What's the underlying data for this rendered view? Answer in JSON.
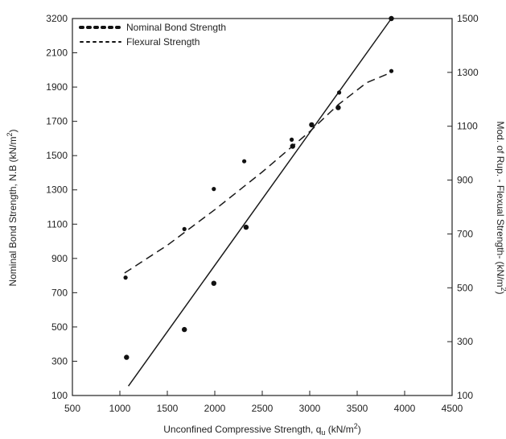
{
  "chart_data": {
    "type": "scatter",
    "xlabel": "Unconfined Compressive Strength, q",
    "xlabel_subscript": "u",
    "xlabel_unit_prefix": " (kN/m",
    "xlabel_unit_sup": "2",
    "xlabel_unit_suffix": ")",
    "ylabel_left": "Nominal Bond Strength, N.B (kN/m",
    "ylabel_left_sup": "2",
    "ylabel_left_suffix": ")",
    "ylabel_right": "Mod. of Rup. - Flexual Strength- (kN/m",
    "ylabel_right_sup": "2",
    "ylabel_right_suffix": ")",
    "xlim": [
      500,
      4500
    ],
    "ylim_left": [
      100,
      3200
    ],
    "ylim_right": [
      100,
      1500
    ],
    "x_ticks": [
      500,
      1000,
      1500,
      2000,
      2500,
      3000,
      3500,
      4000,
      4500
    ],
    "y_left_ticks": [
      100,
      300,
      500,
      700,
      900,
      1100,
      1300,
      1500,
      1700,
      1900,
      2100,
      3200
    ],
    "y_right_ticks": [
      100,
      300,
      500,
      700,
      900,
      1100,
      1300,
      1500
    ],
    "legend_position": "top-left",
    "series": [
      {
        "name": "Nominal Bond Strength",
        "axis": "left",
        "marker": "dot",
        "points": [
          [
            1070,
            323
          ],
          [
            1680,
            485
          ],
          [
            1990,
            755
          ],
          [
            2330,
            1082
          ],
          [
            2820,
            1555
          ],
          [
            3020,
            1680
          ],
          [
            3300,
            1780
          ],
          [
            3860,
            3200
          ]
        ],
        "trendline": {
          "style": "solid",
          "points": [
            [
              1090,
              155
            ],
            [
              3860,
              3200
            ]
          ]
        }
      },
      {
        "name": "Flexural Strength",
        "axis": "right",
        "marker": "dot",
        "points": [
          [
            1060,
            538
          ],
          [
            1680,
            718
          ],
          [
            1990,
            867
          ],
          [
            2310,
            970
          ],
          [
            2810,
            1050
          ],
          [
            3310,
            1225
          ],
          [
            3860,
            1305
          ]
        ],
        "trendline": {
          "style": "dashed",
          "points": [
            [
              1050,
              555
            ],
            [
              1500,
              658
            ],
            [
              2000,
              790
            ],
            [
              2500,
              930
            ],
            [
              3000,
              1080
            ],
            [
              3300,
              1180
            ],
            [
              3600,
              1262
            ],
            [
              3860,
              1300
            ]
          ]
        }
      }
    ]
  }
}
